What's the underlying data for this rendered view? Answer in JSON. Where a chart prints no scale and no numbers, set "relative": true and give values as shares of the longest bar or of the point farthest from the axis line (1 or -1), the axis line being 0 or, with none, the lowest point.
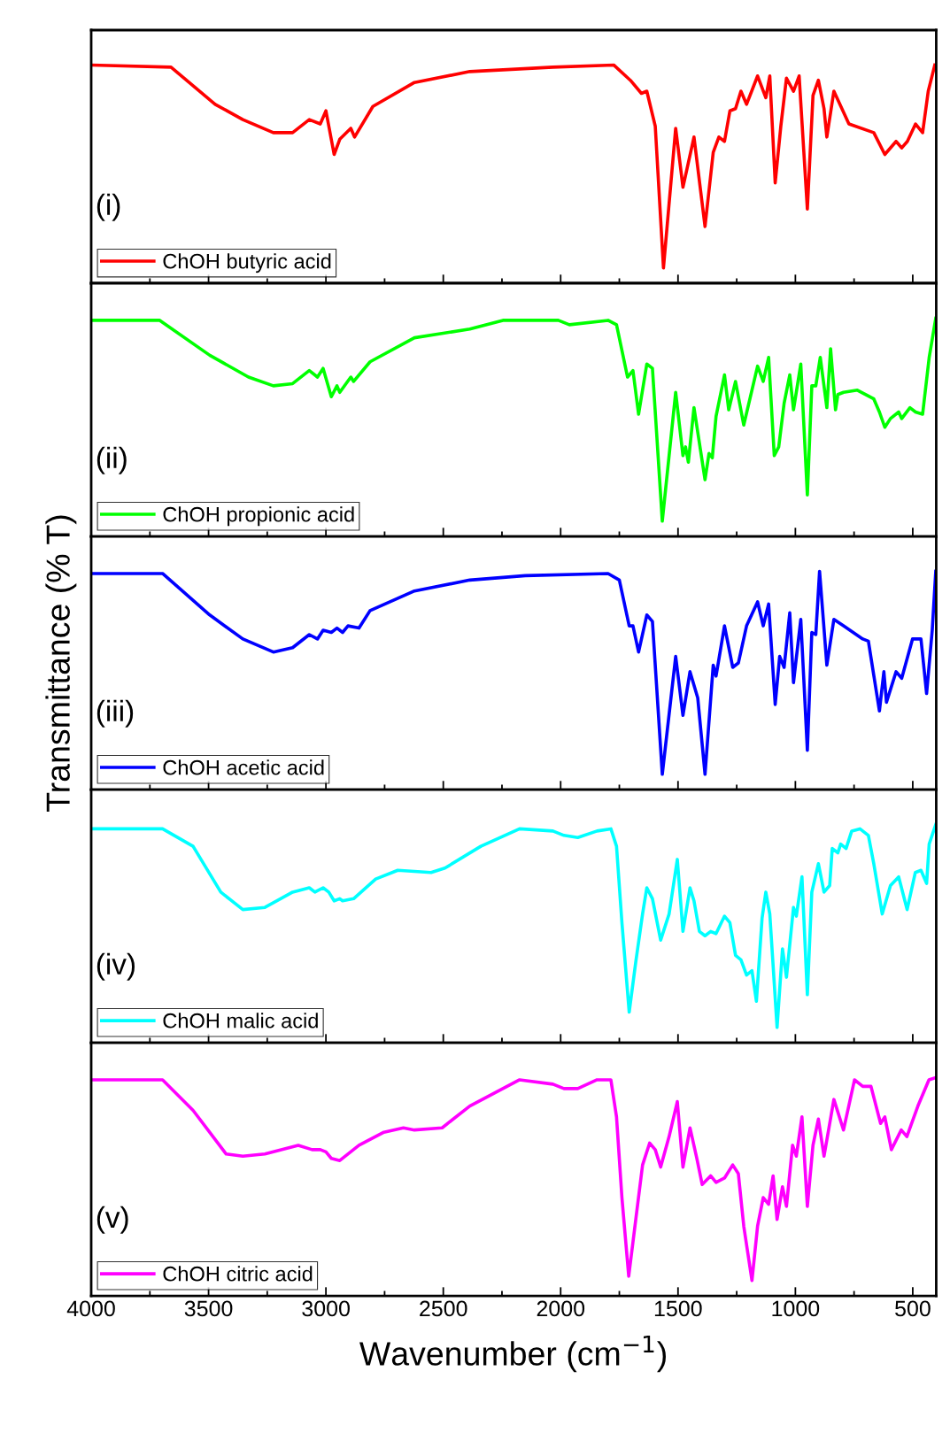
{
  "chart_data": [
    {
      "type": "line",
      "relative": true,
      "xlim": [
        4000,
        400
      ],
      "xticks": [
        4000,
        3500,
        3000,
        2500,
        2000,
        1500,
        1000,
        500
      ],
      "tick_labels": false,
      "legend": "bottom left",
      "annotations": [
        "(i)"
      ],
      "x": [
        4000,
        3660,
        3472,
        3354,
        3224,
        3142,
        3071,
        3024,
        3000,
        2965,
        2941,
        2894,
        2878,
        2800,
        2623,
        2387,
        2033,
        1774,
        1703,
        1656,
        1633,
        1597,
        1562,
        1510,
        1479,
        1432,
        1385,
        1350,
        1326,
        1302,
        1279,
        1255,
        1232,
        1208,
        1161,
        1126,
        1109,
        1086,
        1062,
        1038,
        1008,
        984,
        949,
        925,
        902,
        878,
        866,
        836,
        772,
        666,
        619,
        571,
        547,
        523,
        488,
        458,
        434,
        406
      ],
      "series": [
        {
          "name": "ChOH butyric acid",
          "color": "#ff0000",
          "values": [
            1.0,
            0.99,
            0.82,
            0.75,
            0.69,
            0.69,
            0.75,
            0.73,
            0.79,
            0.59,
            0.66,
            0.71,
            0.67,
            0.81,
            0.92,
            0.97,
            0.99,
            1.0,
            0.93,
            0.87,
            0.88,
            0.72,
            0.07,
            0.71,
            0.44,
            0.67,
            0.26,
            0.6,
            0.67,
            0.65,
            0.79,
            0.8,
            0.88,
            0.82,
            0.95,
            0.85,
            0.95,
            0.46,
            0.72,
            0.94,
            0.88,
            0.95,
            0.34,
            0.86,
            0.93,
            0.8,
            0.67,
            0.88,
            0.73,
            0.69,
            0.59,
            0.65,
            0.62,
            0.65,
            0.73,
            0.69,
            0.88,
            1.0
          ]
        }
      ]
    },
    {
      "type": "line",
      "relative": true,
      "xlim": [
        4000,
        400
      ],
      "xticks": [
        4000,
        3500,
        3000,
        2500,
        2000,
        1500,
        1000,
        500
      ],
      "tick_labels": false,
      "legend": "bottom left",
      "annotations": [
        "(ii)"
      ],
      "x": [
        4000,
        3708,
        3495,
        3330,
        3224,
        3142,
        3071,
        3036,
        3012,
        2977,
        2953,
        2941,
        2894,
        2882,
        2812,
        2623,
        2387,
        2246,
        2010,
        1963,
        1798,
        1762,
        1715,
        1692,
        1668,
        1633,
        1609,
        1567,
        1510,
        1479,
        1468,
        1456,
        1432,
        1385,
        1368,
        1354,
        1338,
        1302,
        1284,
        1255,
        1220,
        1161,
        1137,
        1114,
        1090,
        1071,
        1048,
        1024,
        1008,
        977,
        949,
        930,
        913,
        894,
        866,
        850,
        829,
        819,
        795,
        736,
        666,
        642,
        619,
        595,
        560,
        547,
        512,
        488,
        458,
        430,
        402
      ],
      "series": [
        {
          "name": "ChOH propionic acid",
          "color": "#00ff00",
          "values": [
            0.99,
            0.99,
            0.83,
            0.73,
            0.69,
            0.7,
            0.76,
            0.73,
            0.77,
            0.64,
            0.69,
            0.66,
            0.73,
            0.71,
            0.8,
            0.91,
            0.95,
            0.99,
            0.99,
            0.97,
            0.99,
            0.97,
            0.73,
            0.76,
            0.56,
            0.79,
            0.77,
            0.07,
            0.66,
            0.37,
            0.41,
            0.34,
            0.59,
            0.26,
            0.38,
            0.36,
            0.55,
            0.74,
            0.58,
            0.71,
            0.51,
            0.78,
            0.71,
            0.82,
            0.37,
            0.41,
            0.61,
            0.74,
            0.58,
            0.79,
            0.19,
            0.69,
            0.69,
            0.82,
            0.59,
            0.86,
            0.58,
            0.65,
            0.66,
            0.67,
            0.63,
            0.57,
            0.5,
            0.54,
            0.57,
            0.54,
            0.59,
            0.57,
            0.56,
            0.82,
            1.0
          ]
        }
      ]
    },
    {
      "type": "line",
      "relative": true,
      "xlim": [
        4000,
        400
      ],
      "xticks": [
        4000,
        3500,
        3000,
        2500,
        2000,
        1500,
        1000,
        500
      ],
      "tick_labels": false,
      "legend": "bottom left",
      "annotations": [
        "(iii)"
      ],
      "ylabel": "Transmittance (% T)",
      "x": [
        4000,
        3696,
        3495,
        3354,
        3224,
        3142,
        3071,
        3036,
        3012,
        2977,
        2953,
        2929,
        2906,
        2859,
        2812,
        2623,
        2387,
        2151,
        1798,
        1750,
        1708,
        1692,
        1668,
        1633,
        1609,
        1567,
        1510,
        1479,
        1449,
        1416,
        1385,
        1350,
        1338,
        1302,
        1267,
        1243,
        1208,
        1161,
        1137,
        1114,
        1086,
        1067,
        1048,
        1024,
        1008,
        977,
        949,
        930,
        913,
        897,
        866,
        836,
        795,
        713,
        689,
        642,
        623,
        612,
        571,
        547,
        501,
        465,
        441,
        417,
        402
      ],
      "series": [
        {
          "name": "ChOH acetic acid",
          "color": "#0000ff",
          "values": [
            0.99,
            0.99,
            0.8,
            0.69,
            0.63,
            0.65,
            0.71,
            0.69,
            0.73,
            0.72,
            0.74,
            0.72,
            0.75,
            0.74,
            0.82,
            0.91,
            0.96,
            0.98,
            0.99,
            0.96,
            0.75,
            0.75,
            0.63,
            0.8,
            0.77,
            0.07,
            0.61,
            0.34,
            0.54,
            0.42,
            0.07,
            0.57,
            0.52,
            0.75,
            0.56,
            0.58,
            0.75,
            0.86,
            0.75,
            0.85,
            0.39,
            0.61,
            0.56,
            0.81,
            0.49,
            0.78,
            0.18,
            0.72,
            0.71,
            1.0,
            0.57,
            0.78,
            0.75,
            0.69,
            0.68,
            0.36,
            0.54,
            0.4,
            0.54,
            0.51,
            0.69,
            0.69,
            0.44,
            0.73,
            1.0
          ]
        }
      ]
    },
    {
      "type": "line",
      "relative": true,
      "xlim": [
        4000,
        400
      ],
      "xticks": [
        4000,
        3500,
        3000,
        2500,
        2000,
        1500,
        1000,
        500
      ],
      "tick_labels": false,
      "legend": "bottom left",
      "annotations": [
        "(iv)"
      ],
      "x": [
        4000,
        3696,
        3566,
        3448,
        3354,
        3260,
        3142,
        3071,
        3047,
        3012,
        2988,
        2965,
        2941,
        2929,
        2882,
        2788,
        2694,
        2552,
        2493,
        2340,
        2175,
        2033,
        1986,
        1927,
        1845,
        1786,
        1762,
        1739,
        1708,
        1680,
        1651,
        1633,
        1609,
        1574,
        1538,
        1503,
        1479,
        1449,
        1432,
        1409,
        1385,
        1361,
        1338,
        1302,
        1279,
        1255,
        1232,
        1208,
        1185,
        1166,
        1142,
        1126,
        1109,
        1078,
        1055,
        1038,
        1008,
        996,
        972,
        949,
        930,
        902,
        878,
        854,
        843,
        819,
        807,
        784,
        760,
        725,
        689,
        666,
        630,
        595,
        560,
        524,
        489,
        465,
        441,
        430,
        402
      ],
      "series": [
        {
          "name": "ChOH malic acid",
          "color": "#00ffff",
          "values": [
            0.98,
            0.98,
            0.9,
            0.69,
            0.61,
            0.62,
            0.69,
            0.71,
            0.69,
            0.71,
            0.69,
            0.65,
            0.66,
            0.65,
            0.66,
            0.75,
            0.79,
            0.78,
            0.8,
            0.9,
            0.98,
            0.97,
            0.95,
            0.94,
            0.97,
            0.98,
            0.9,
            0.55,
            0.14,
            0.37,
            0.59,
            0.71,
            0.66,
            0.47,
            0.59,
            0.84,
            0.51,
            0.71,
            0.65,
            0.51,
            0.49,
            0.51,
            0.5,
            0.58,
            0.55,
            0.4,
            0.38,
            0.31,
            0.33,
            0.19,
            0.57,
            0.69,
            0.59,
            0.07,
            0.43,
            0.3,
            0.62,
            0.58,
            0.76,
            0.22,
            0.69,
            0.82,
            0.69,
            0.72,
            0.89,
            0.87,
            0.91,
            0.89,
            0.97,
            0.98,
            0.95,
            0.82,
            0.59,
            0.72,
            0.76,
            0.61,
            0.78,
            0.79,
            0.73,
            0.91,
            1.0
          ]
        }
      ]
    },
    {
      "type": "line",
      "relative": true,
      "xlim": [
        4000,
        400
      ],
      "xticks": [
        4000,
        3500,
        3000,
        2500,
        2000,
        1500,
        1000,
        500
      ],
      "tick_labels": "x",
      "legend": "bottom left",
      "annotations": [
        "(v)"
      ],
      "xlabel": "Wavenumber (cm$^{−1}$)",
      "x": [
        4000,
        3696,
        3566,
        3425,
        3354,
        3260,
        3118,
        3059,
        3024,
        3000,
        2977,
        2941,
        2859,
        2753,
        2670,
        2623,
        2505,
        2387,
        2175,
        2033,
        1986,
        1927,
        1845,
        1786,
        1762,
        1739,
        1710,
        1680,
        1651,
        1621,
        1597,
        1574,
        1538,
        1503,
        1479,
        1449,
        1420,
        1397,
        1361,
        1338,
        1302,
        1267,
        1243,
        1220,
        1185,
        1161,
        1137,
        1114,
        1095,
        1078,
        1055,
        1038,
        1012,
        996,
        972,
        949,
        925,
        902,
        878,
        836,
        795,
        748,
        713,
        678,
        637,
        619,
        591,
        549,
        525,
        478,
        431,
        402
      ],
      "series": [
        {
          "name": "ChOH citric acid",
          "color": "#ff00ff",
          "values": [
            0.99,
            0.99,
            0.85,
            0.65,
            0.64,
            0.65,
            0.69,
            0.67,
            0.67,
            0.66,
            0.63,
            0.62,
            0.69,
            0.75,
            0.77,
            0.76,
            0.77,
            0.87,
            0.99,
            0.97,
            0.95,
            0.95,
            0.99,
            0.99,
            0.82,
            0.45,
            0.09,
            0.35,
            0.6,
            0.7,
            0.67,
            0.59,
            0.73,
            0.89,
            0.59,
            0.77,
            0.63,
            0.51,
            0.55,
            0.52,
            0.54,
            0.6,
            0.56,
            0.32,
            0.07,
            0.32,
            0.45,
            0.42,
            0.55,
            0.35,
            0.5,
            0.41,
            0.69,
            0.64,
            0.82,
            0.41,
            0.69,
            0.81,
            0.64,
            0.9,
            0.76,
            0.99,
            0.96,
            0.96,
            0.79,
            0.82,
            0.67,
            0.76,
            0.73,
            0.87,
            0.99,
            1.0
          ]
        }
      ]
    }
  ]
}
